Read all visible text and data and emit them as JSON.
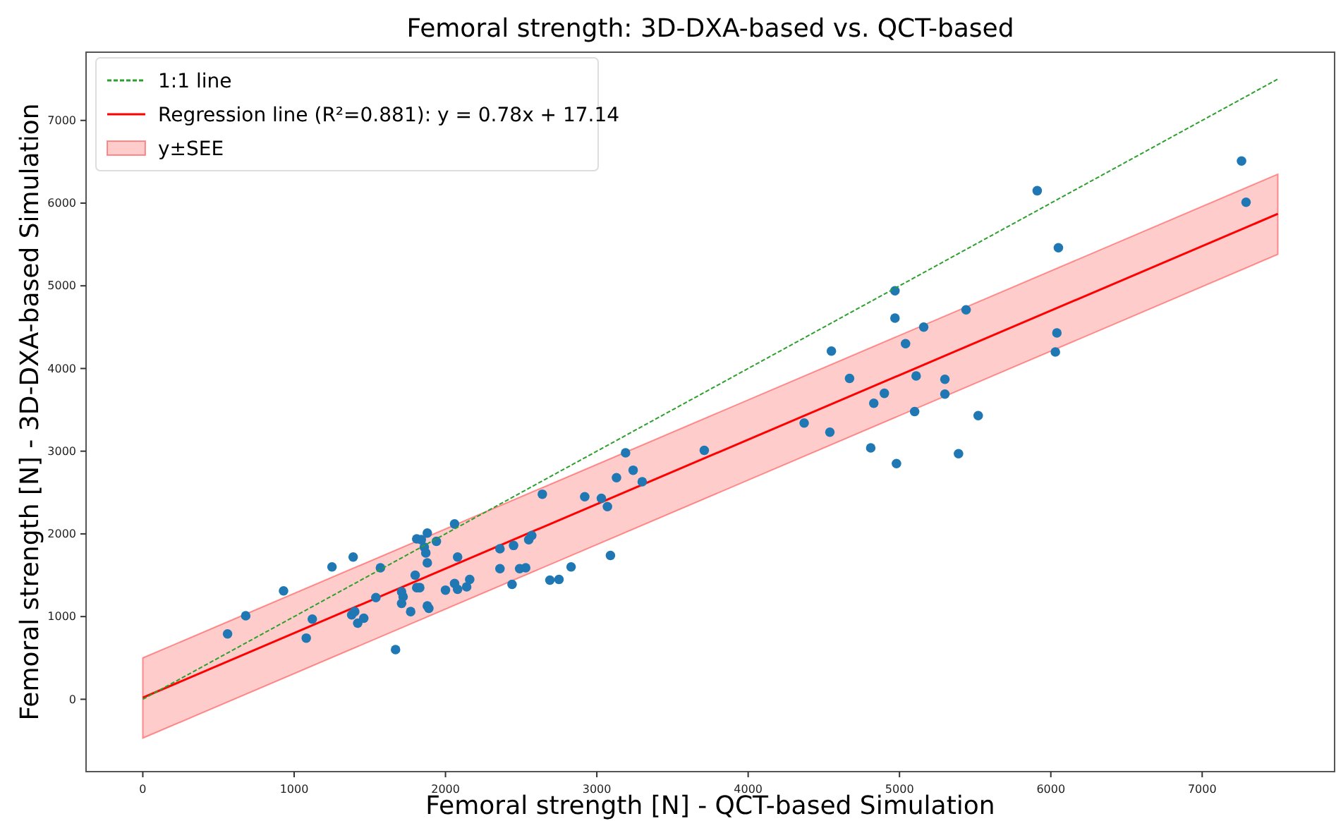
{
  "chart_data": {
    "type": "scatter",
    "title": "Femoral strength: 3D-DXA-based vs. QCT-based",
    "xlabel": "Femoral strength [N] - QCT-based Simulation",
    "ylabel": "Femoral strength [N] - 3D-DXA-based Simulation",
    "xlim": [
      -375,
      7875
    ],
    "ylim": [
      -875,
      7825
    ],
    "xticks": [
      0,
      1000,
      2000,
      3000,
      4000,
      5000,
      6000,
      7000
    ],
    "yticks": [
      0,
      1000,
      2000,
      3000,
      4000,
      5000,
      6000,
      7000
    ],
    "grid": false,
    "legend": "top left",
    "annotations": [
      "y±SEE"
    ],
    "series": [
      {
        "type": "line",
        "name": "1:1 line",
        "color": "#2ca02c",
        "line_style": "dashed",
        "marker": "none",
        "x": [
          0,
          7500
        ],
        "values": [
          0,
          7500
        ]
      },
      {
        "type": "line",
        "name": "Regression line (R²=0.881): y = 0.78x + 17.14",
        "color": "#ff0000",
        "line_style": "solid",
        "marker": "none",
        "x": [
          0,
          7500
        ],
        "values": [
          20,
          5870
        ],
        "lower": [
          -470,
          5380
        ],
        "upper": [
          500,
          6350
        ]
      },
      {
        "color": "#1f77b4",
        "marker": "circle",
        "x": [
          560,
          680,
          930,
          1080,
          1120,
          1250,
          1390,
          1380,
          1400,
          1420,
          1460,
          1540,
          1570,
          1670,
          1710,
          1720,
          1710,
          1770,
          1800,
          1810,
          1840,
          1830,
          1810,
          1860,
          1870,
          1880,
          1880,
          1880,
          1890,
          1940,
          2000,
          2060,
          2060,
          2080,
          2080,
          2140,
          2160,
          2360,
          2360,
          2440,
          2450,
          2490,
          2530,
          2550,
          2570,
          2640,
          2690,
          2750,
          2830,
          2920,
          3030,
          3070,
          3090,
          3130,
          3190,
          3240,
          3300,
          3710,
          4370,
          4550,
          4540,
          4670,
          4810,
          4830,
          4900,
          4970,
          4970,
          4980,
          5040,
          5100,
          5110,
          5160,
          5300,
          5300,
          5390,
          5440,
          5520,
          5910,
          6050,
          6040,
          6030,
          7260,
          7290
        ],
        "values": [
          790,
          1010,
          1310,
          740,
          970,
          1600,
          1720,
          1020,
          1060,
          920,
          980,
          1230,
          1590,
          600,
          1300,
          1240,
          1160,
          1060,
          1500,
          1940,
          1930,
          1350,
          1350,
          1840,
          1770,
          2010,
          1650,
          1130,
          1100,
          1910,
          1320,
          2120,
          1400,
          1720,
          1330,
          1360,
          1450,
          1820,
          1580,
          1390,
          1860,
          1580,
          1590,
          1930,
          1980,
          2480,
          1440,
          1450,
          1600,
          2450,
          2430,
          2330,
          1740,
          2680,
          2980,
          2770,
          2630,
          3010,
          3340,
          4210,
          3230,
          3880,
          3040,
          3580,
          3700,
          4940,
          4610,
          2850,
          4300,
          3480,
          3910,
          4500,
          3870,
          3690,
          2970,
          4710,
          3430,
          6150,
          5460,
          4430,
          4200,
          6510,
          6010
        ]
      }
    ]
  }
}
